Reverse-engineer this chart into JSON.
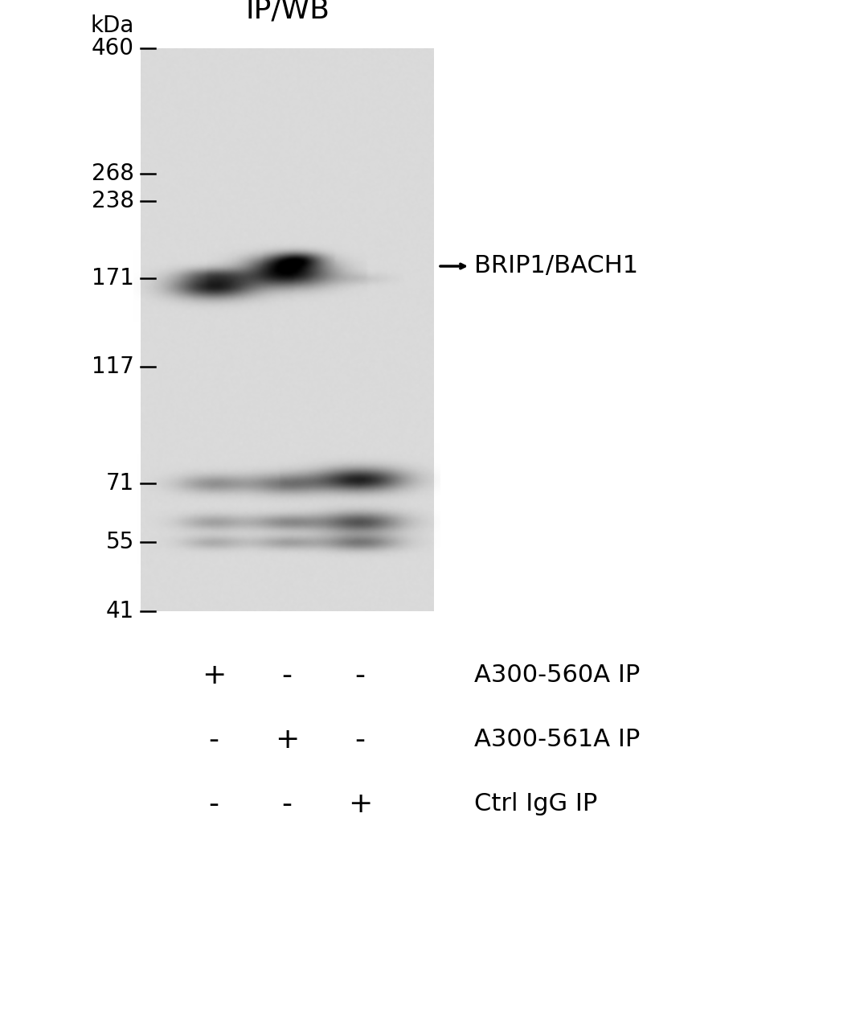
{
  "background_color": "#ffffff",
  "gel_bg_light": 210,
  "gel_bg_dark": 195,
  "title_text": "IP/WB",
  "title_fontsize": 26,
  "kda_label": "kDa",
  "kda_fontsize": 20,
  "marker_fontsize": 20,
  "marker_labels": [
    "460",
    "268",
    "238",
    "171",
    "117",
    "71",
    "55",
    "41"
  ],
  "marker_kda": [
    460,
    268,
    238,
    171,
    117,
    71,
    55,
    41
  ],
  "band_annotation_fontsize": 22,
  "row_label_fontsize": 22,
  "plus_minus_fontsize": 26,
  "row1_label": "A300-560A IP",
  "row2_label": "A300-561A IP",
  "row3_label": "Ctrl IgG IP",
  "sample_labels_row1": [
    "+",
    "-",
    "-"
  ],
  "sample_labels_row2": [
    "-",
    "+",
    "-"
  ],
  "sample_labels_row3": [
    "-",
    "-",
    "+"
  ]
}
